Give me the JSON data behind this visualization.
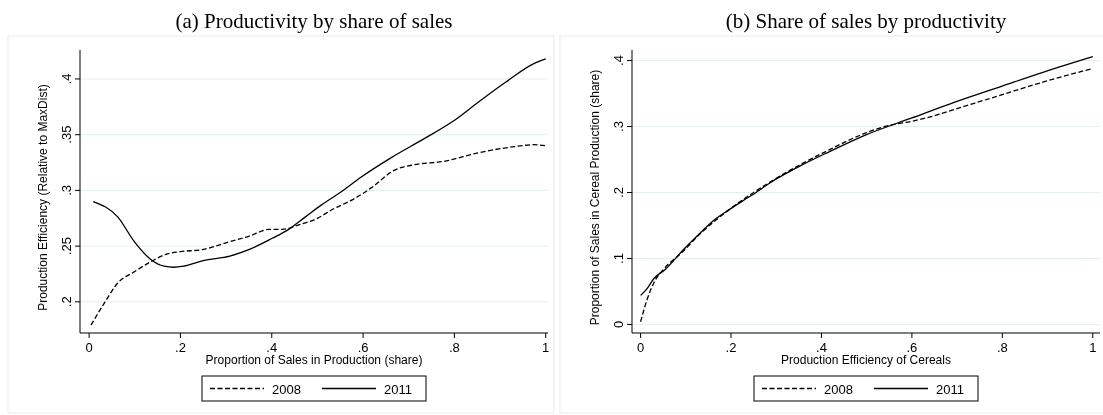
{
  "chart_data": [
    {
      "type": "line",
      "title": "(a) Productivity by share of sales",
      "xlabel": "Proportion of Sales in Production (share)",
      "ylabel": "Production Efficiency (Relative to MaxDist)",
      "xlim": [
        -0.02,
        1.005
      ],
      "ylim": [
        0.172,
        0.426
      ],
      "xticks": [
        {
          "value": 0,
          "label": "0"
        },
        {
          "value": 0.2,
          "label": ".2"
        },
        {
          "value": 0.4,
          "label": ".4"
        },
        {
          "value": 0.6,
          "label": ".6"
        },
        {
          "value": 0.8,
          "label": ".8"
        },
        {
          "value": 1,
          "label": "1"
        }
      ],
      "yticks": [
        {
          "value": 0.2,
          "label": ".2"
        },
        {
          "value": 0.25,
          "label": ".25"
        },
        {
          "value": 0.3,
          "label": ".3"
        },
        {
          "value": 0.35,
          "label": ".35"
        },
        {
          "value": 0.4,
          "label": ".4"
        }
      ],
      "grid": "y",
      "legend": "bottom",
      "series": [
        {
          "name": "2008",
          "color": "#000000",
          "line_style": "dashed",
          "x": [
            0.004,
            0.035,
            0.063,
            0.099,
            0.135,
            0.171,
            0.2,
            0.25,
            0.308,
            0.351,
            0.394,
            0.423,
            0.459,
            0.495,
            0.538,
            0.574,
            0.617,
            0.668,
            0.711,
            0.776,
            0.855,
            0.927,
            0.975,
            1.0
          ],
          "values": [
            0.179,
            0.2,
            0.217,
            0.227,
            0.236,
            0.243,
            0.245,
            0.247,
            0.254,
            0.259,
            0.265,
            0.265,
            0.269,
            0.274,
            0.284,
            0.291,
            0.302,
            0.318,
            0.323,
            0.326,
            0.334,
            0.339,
            0.341,
            0.34
          ]
        },
        {
          "name": "2011",
          "color": "#000000",
          "line_style": "solid",
          "x": [
            0.009,
            0.063,
            0.099,
            0.135,
            0.164,
            0.186,
            0.207,
            0.25,
            0.308,
            0.351,
            0.401,
            0.437,
            0.473,
            0.509,
            0.553,
            0.596,
            0.66,
            0.732,
            0.797,
            0.855,
            0.912,
            0.975,
            1.0
          ],
          "values": [
            0.29,
            0.276,
            0.254,
            0.238,
            0.232,
            0.231,
            0.232,
            0.237,
            0.241,
            0.247,
            0.257,
            0.265,
            0.276,
            0.287,
            0.299,
            0.312,
            0.329,
            0.346,
            0.362,
            0.38,
            0.397,
            0.414,
            0.418
          ]
        }
      ]
    },
    {
      "type": "line",
      "title": "(b) Share of sales by productivity",
      "xlabel": "Production Efficiency of Cereals",
      "ylabel": "Proportion of Sales in Cereal Production (share)",
      "xlim": [
        -0.019,
        1.016
      ],
      "ylim": [
        -0.013,
        0.416
      ],
      "xticks": [
        {
          "value": 0,
          "label": "0"
        },
        {
          "value": 0.2,
          "label": ".2"
        },
        {
          "value": 0.4,
          "label": ".4"
        },
        {
          "value": 0.6,
          "label": ".6"
        },
        {
          "value": 0.8,
          "label": ".8"
        },
        {
          "value": 1,
          "label": "1"
        }
      ],
      "yticks": [
        {
          "value": 0,
          "label": "0"
        },
        {
          "value": 0.1,
          "label": ".1"
        },
        {
          "value": 0.2,
          "label": ".2"
        },
        {
          "value": 0.3,
          "label": ".3"
        },
        {
          "value": 0.4,
          "label": ".4"
        }
      ],
      "grid": "y",
      "legend": "bottom",
      "series": [
        {
          "name": "2008",
          "color": "#000000",
          "line_style": "dashed",
          "x": [
            0,
            0.014,
            0.03,
            0.054,
            0.093,
            0.125,
            0.196,
            0.299,
            0.418,
            0.497,
            0.545,
            0.6,
            0.648,
            0.695,
            0.798,
            0.893,
            1.0
          ],
          "values": [
            0.004,
            0.037,
            0.064,
            0.086,
            0.11,
            0.133,
            0.174,
            0.221,
            0.265,
            0.29,
            0.301,
            0.308,
            0.316,
            0.326,
            0.348,
            0.368,
            0.388
          ]
        },
        {
          "name": "2011",
          "color": "#000000",
          "line_style": "solid",
          "x": [
            0,
            0.014,
            0.03,
            0.054,
            0.093,
            0.125,
            0.157,
            0.196,
            0.244,
            0.299,
            0.355,
            0.418,
            0.497,
            0.6,
            0.695,
            0.798,
            0.893,
            1.0
          ],
          "values": [
            0.044,
            0.054,
            0.07,
            0.083,
            0.112,
            0.134,
            0.155,
            0.174,
            0.195,
            0.22,
            0.241,
            0.262,
            0.287,
            0.313,
            0.337,
            0.361,
            0.383,
            0.406
          ]
        }
      ]
    }
  ]
}
